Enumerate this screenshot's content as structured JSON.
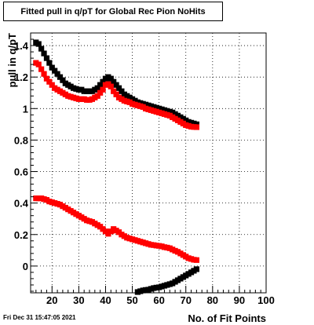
{
  "footer": {
    "timestamp": "Fri Dec 31 15:47:05 2021"
  },
  "chart_data": {
    "type": "scatter",
    "title": "Fitted pull in q/pT for Global Rec Pion NoHits",
    "xlabel": "No. of Fit Points",
    "ylabel": "pull in q/pT",
    "xlim": [
      12,
      100
    ],
    "ylim": [
      -0.17,
      1.48
    ],
    "x_ticks": [
      20,
      30,
      40,
      50,
      60,
      70,
      80,
      90,
      100
    ],
    "y_ticks": [
      0,
      0.2,
      0.4,
      0.6,
      0.8,
      1,
      1.2,
      1.4
    ],
    "x_tick_labels": [
      "20",
      "30",
      "40",
      "50",
      "60",
      "70",
      "80",
      "90",
      "100"
    ],
    "y_tick_labels": [
      "0",
      "0.2",
      "0.4",
      "0.6",
      "0.8",
      "1",
      "1.2",
      "1.4"
    ],
    "grid": true,
    "colors": {
      "black_series": "#000000",
      "red_series": "#ff0000"
    },
    "series": [
      {
        "color": "#000000",
        "points": [
          [
            14,
            1.42
          ],
          [
            15,
            1.41
          ],
          [
            16,
            1.38
          ],
          [
            17,
            1.35
          ],
          [
            18,
            1.32
          ],
          [
            19,
            1.29
          ],
          [
            20,
            1.26
          ],
          [
            21,
            1.24
          ],
          [
            22,
            1.22
          ],
          [
            23,
            1.2
          ],
          [
            24,
            1.18
          ],
          [
            25,
            1.16
          ],
          [
            26,
            1.15
          ],
          [
            27,
            1.14
          ],
          [
            28,
            1.13
          ],
          [
            29,
            1.125
          ],
          [
            30,
            1.12
          ],
          [
            31,
            1.12
          ],
          [
            32,
            1.11
          ],
          [
            33,
            1.11
          ],
          [
            34,
            1.11
          ],
          [
            35,
            1.11
          ],
          [
            36,
            1.12
          ],
          [
            37,
            1.13
          ],
          [
            38,
            1.15
          ],
          [
            39,
            1.17
          ],
          [
            40,
            1.19
          ],
          [
            41,
            1.2
          ],
          [
            42,
            1.19
          ],
          [
            43,
            1.17
          ],
          [
            44,
            1.15
          ],
          [
            45,
            1.13
          ],
          [
            46,
            1.11
          ],
          [
            47,
            1.09
          ],
          [
            48,
            1.08
          ],
          [
            49,
            1.07
          ],
          [
            50,
            1.06
          ],
          [
            51,
            1.05
          ],
          [
            52,
            1.04
          ],
          [
            53,
            1.035
          ],
          [
            54,
            1.03
          ],
          [
            55,
            1.025
          ],
          [
            56,
            1.02
          ],
          [
            57,
            1.015
          ],
          [
            58,
            1.01
          ],
          [
            59,
            1.005
          ],
          [
            60,
            1.0
          ],
          [
            61,
            0.995
          ],
          [
            62,
            0.99
          ],
          [
            63,
            0.985
          ],
          [
            64,
            0.98
          ],
          [
            65,
            0.975
          ],
          [
            66,
            0.965
          ],
          [
            67,
            0.955
          ],
          [
            68,
            0.945
          ],
          [
            69,
            0.935
          ],
          [
            70,
            0.925
          ],
          [
            71,
            0.915
          ],
          [
            72,
            0.91
          ],
          [
            73,
            0.905
          ],
          [
            74,
            0.9
          ]
        ]
      },
      {
        "color": "#ff0000",
        "points": [
          [
            14,
            1.29
          ],
          [
            15,
            1.28
          ],
          [
            16,
            1.25
          ],
          [
            17,
            1.22
          ],
          [
            18,
            1.19
          ],
          [
            19,
            1.17
          ],
          [
            20,
            1.15
          ],
          [
            21,
            1.13
          ],
          [
            22,
            1.12
          ],
          [
            23,
            1.11
          ],
          [
            24,
            1.1
          ],
          [
            25,
            1.09
          ],
          [
            26,
            1.08
          ],
          [
            27,
            1.075
          ],
          [
            28,
            1.07
          ],
          [
            29,
            1.065
          ],
          [
            30,
            1.06
          ],
          [
            31,
            1.06
          ],
          [
            32,
            1.06
          ],
          [
            33,
            1.055
          ],
          [
            34,
            1.055
          ],
          [
            35,
            1.06
          ],
          [
            36,
            1.07
          ],
          [
            37,
            1.08
          ],
          [
            38,
            1.1
          ],
          [
            39,
            1.12
          ],
          [
            40,
            1.15
          ],
          [
            41,
            1.155
          ],
          [
            42,
            1.14
          ],
          [
            43,
            1.11
          ],
          [
            44,
            1.09
          ],
          [
            45,
            1.07
          ],
          [
            46,
            1.06
          ],
          [
            47,
            1.05
          ],
          [
            48,
            1.045
          ],
          [
            49,
            1.04
          ],
          [
            50,
            1.03
          ],
          [
            51,
            1.025
          ],
          [
            52,
            1.02
          ],
          [
            53,
            1.015
          ],
          [
            54,
            1.01
          ],
          [
            55,
            1.0
          ],
          [
            56,
            0.995
          ],
          [
            57,
            0.99
          ],
          [
            58,
            0.985
          ],
          [
            59,
            0.98
          ],
          [
            60,
            0.975
          ],
          [
            61,
            0.97
          ],
          [
            62,
            0.965
          ],
          [
            63,
            0.96
          ],
          [
            64,
            0.955
          ],
          [
            65,
            0.945
          ],
          [
            66,
            0.935
          ],
          [
            67,
            0.925
          ],
          [
            68,
            0.915
          ],
          [
            69,
            0.905
          ],
          [
            70,
            0.895
          ],
          [
            71,
            0.89
          ],
          [
            72,
            0.885
          ],
          [
            73,
            0.883
          ],
          [
            74,
            0.882
          ]
        ]
      },
      {
        "color": "#ff0000",
        "points": [
          [
            14,
            0.43
          ],
          [
            15,
            0.43
          ],
          [
            16,
            0.43
          ],
          [
            17,
            0.425
          ],
          [
            18,
            0.42
          ],
          [
            19,
            0.41
          ],
          [
            20,
            0.405
          ],
          [
            21,
            0.4
          ],
          [
            22,
            0.395
          ],
          [
            23,
            0.39
          ],
          [
            24,
            0.38
          ],
          [
            25,
            0.37
          ],
          [
            26,
            0.36
          ],
          [
            27,
            0.35
          ],
          [
            28,
            0.34
          ],
          [
            29,
            0.33
          ],
          [
            30,
            0.32
          ],
          [
            31,
            0.31
          ],
          [
            32,
            0.3
          ],
          [
            33,
            0.29
          ],
          [
            34,
            0.285
          ],
          [
            35,
            0.28
          ],
          [
            36,
            0.27
          ],
          [
            37,
            0.26
          ],
          [
            38,
            0.25
          ],
          [
            39,
            0.235
          ],
          [
            40,
            0.22
          ],
          [
            41,
            0.205
          ],
          [
            42,
            0.22
          ],
          [
            43,
            0.235
          ],
          [
            44,
            0.225
          ],
          [
            45,
            0.215
          ],
          [
            46,
            0.2
          ],
          [
            47,
            0.19
          ],
          [
            48,
            0.18
          ],
          [
            49,
            0.175
          ],
          [
            50,
            0.17
          ],
          [
            51,
            0.165
          ],
          [
            52,
            0.16
          ],
          [
            53,
            0.155
          ],
          [
            54,
            0.15
          ],
          [
            55,
            0.145
          ],
          [
            56,
            0.14
          ],
          [
            57,
            0.135
          ],
          [
            58,
            0.133
          ],
          [
            59,
            0.13
          ],
          [
            60,
            0.128
          ],
          [
            61,
            0.125
          ],
          [
            62,
            0.12
          ],
          [
            63,
            0.117
          ],
          [
            64,
            0.113
          ],
          [
            65,
            0.105
          ],
          [
            66,
            0.097
          ],
          [
            67,
            0.09
          ],
          [
            68,
            0.08
          ],
          [
            69,
            0.07
          ],
          [
            70,
            0.06
          ],
          [
            71,
            0.05
          ],
          [
            72,
            0.045
          ],
          [
            73,
            0.04
          ],
          [
            74,
            0.038
          ]
        ]
      },
      {
        "color": "#000000",
        "points": [
          [
            52,
            -0.165
          ],
          [
            53,
            -0.16
          ],
          [
            54,
            -0.155
          ],
          [
            55,
            -0.152
          ],
          [
            56,
            -0.15
          ],
          [
            57,
            -0.145
          ],
          [
            58,
            -0.14
          ],
          [
            59,
            -0.137
          ],
          [
            60,
            -0.135
          ],
          [
            61,
            -0.13
          ],
          [
            62,
            -0.125
          ],
          [
            63,
            -0.12
          ],
          [
            64,
            -0.115
          ],
          [
            65,
            -0.11
          ],
          [
            66,
            -0.1
          ],
          [
            67,
            -0.09
          ],
          [
            68,
            -0.08
          ],
          [
            69,
            -0.07
          ],
          [
            70,
            -0.06
          ],
          [
            71,
            -0.05
          ],
          [
            72,
            -0.04
          ],
          [
            73,
            -0.03
          ],
          [
            74,
            -0.02
          ]
        ]
      }
    ]
  }
}
